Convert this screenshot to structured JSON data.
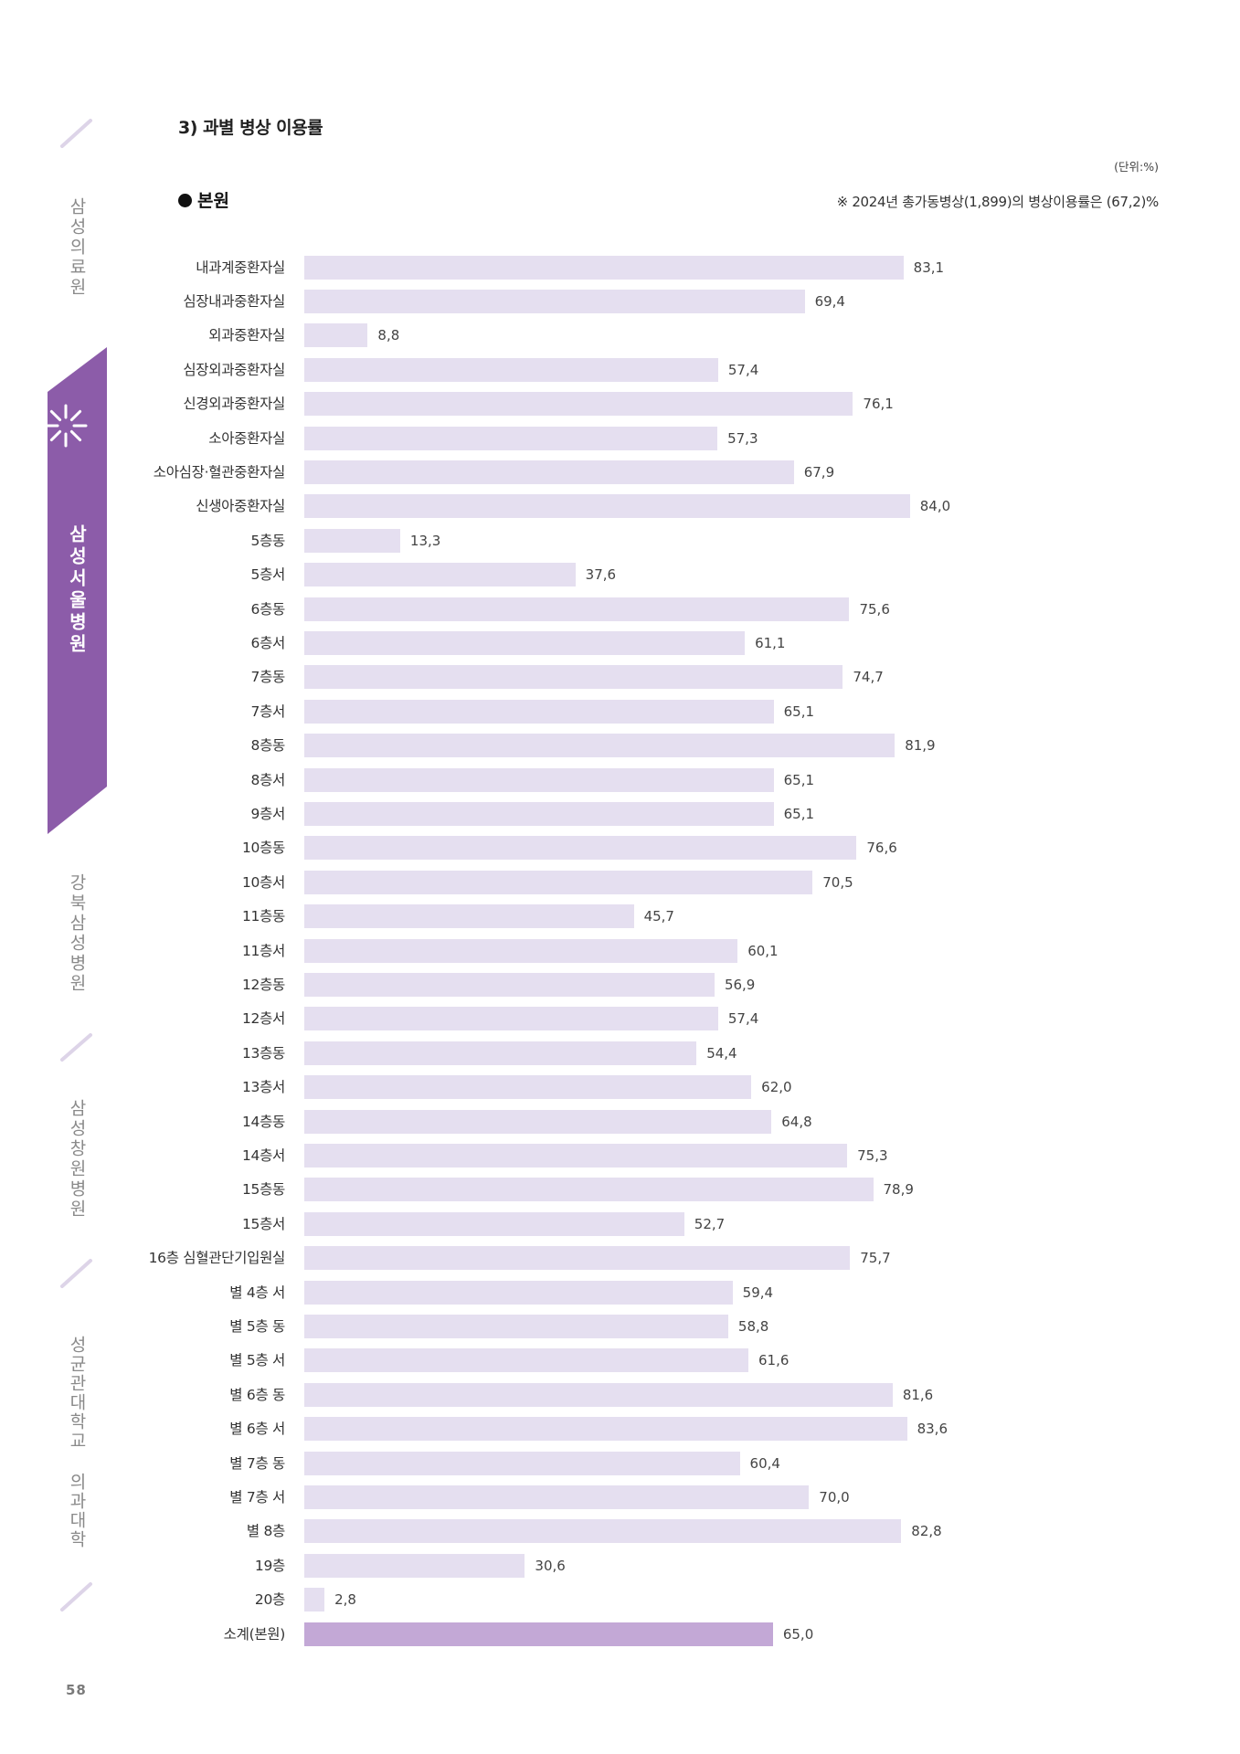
{
  "sidebar": {
    "items": [
      {
        "label": "삼성의료원",
        "active": false
      },
      {
        "label": "삼성서울병원",
        "active": true
      },
      {
        "label": "강북삼성병원",
        "active": false
      },
      {
        "label": "삼성창원병원",
        "active": false
      },
      {
        "label": "성균관대학교 의과대학",
        "active": false
      }
    ],
    "active_color": "#8c5ca9",
    "inactive_text_color": "#8a8a8a",
    "divider_color": "#ddd4e8"
  },
  "page_number": "58",
  "chart_data": {
    "type": "bar",
    "orientation": "horizontal",
    "title": "3) 과별 병상 이용률",
    "subtitle": "본원",
    "unit": "(단위:%)",
    "note": "※ 2024년 총가동병상(1,899)의 병상이용률은 (67,2)%",
    "xlabel": "",
    "ylabel": "",
    "xlim": [
      0,
      100
    ],
    "grid": false,
    "categories": [
      "내과계중환자실",
      "심장내과중환자실",
      "외과중환자실",
      "심장외과중환자실",
      "신경외과중환자실",
      "소아중환자실",
      "소아심장·혈관중환자실",
      "신생아중환자실",
      "5층동",
      "5층서",
      "6층동",
      "6층서",
      "7층동",
      "7층서",
      "8층동",
      "8층서",
      "9층서",
      "10층동",
      "10층서",
      "11층동",
      "11층서",
      "12층동",
      "12층서",
      "13층동",
      "13층서",
      "14층동",
      "14층서",
      "15층동",
      "15층서",
      "16층 심혈관단기입원실",
      "별 4층 서",
      "별 5층 동",
      "별 5층 서",
      "별 6층 동",
      "별 6층 서",
      "별 7층 동",
      "별 7층 서",
      "별 8층",
      "19층",
      "20층",
      "소계(본원)"
    ],
    "values": [
      83.1,
      69.4,
      8.8,
      57.4,
      76.1,
      57.3,
      67.9,
      84.0,
      13.3,
      37.6,
      75.6,
      61.1,
      74.7,
      65.1,
      81.9,
      65.1,
      65.1,
      76.6,
      70.5,
      45.7,
      60.1,
      56.9,
      57.4,
      54.4,
      62.0,
      64.8,
      75.3,
      78.9,
      52.7,
      75.7,
      59.4,
      58.8,
      61.6,
      81.6,
      83.6,
      60.4,
      70.0,
      82.8,
      30.6,
      2.8,
      65.0
    ],
    "value_labels": [
      "83,1",
      "69,4",
      "8,8",
      "57,4",
      "76,1",
      "57,3",
      "67,9",
      "84,0",
      "13,3",
      "37,6",
      "75,6",
      "61,1",
      "74,7",
      "65,1",
      "81,9",
      "65,1",
      "65,1",
      "76,6",
      "70,5",
      "45,7",
      "60,1",
      "56,9",
      "57,4",
      "54,4",
      "62,0",
      "64,8",
      "75,3",
      "78,9",
      "52,7",
      "75,7",
      "59,4",
      "58,8",
      "61,6",
      "81,6",
      "83,6",
      "60,4",
      "70,0",
      "82,8",
      "30,6",
      "2,8",
      "65,0"
    ],
    "colors": {
      "bar": "#e5dff0",
      "subtotal_bar": "#c3a8d6"
    }
  }
}
